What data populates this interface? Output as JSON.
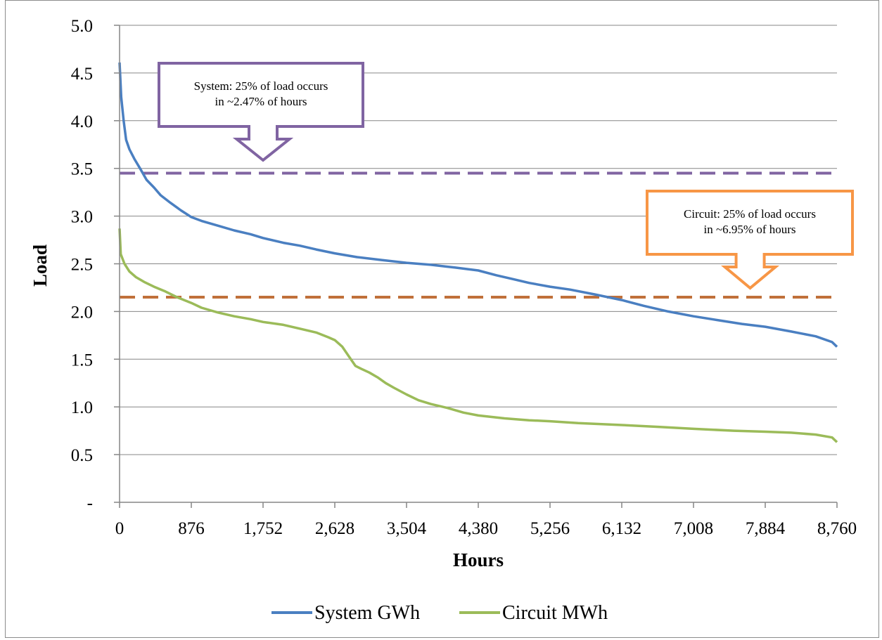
{
  "chart_data": {
    "type": "line",
    "xlabel": "Hours",
    "ylabel": "Load",
    "xlim": [
      0,
      8760
    ],
    "ylim": [
      0,
      5.0
    ],
    "grid": "horizontal",
    "legend_placement": "bottom",
    "x_ticks": [
      "0",
      "876",
      "1,752",
      "2,628",
      "3,504",
      "4,380",
      "5,256",
      "6,132",
      "7,008",
      "7,884",
      "8,760"
    ],
    "x_tick_values": [
      0,
      876,
      1752,
      2628,
      3504,
      4380,
      5256,
      6132,
      7008,
      7884,
      8760
    ],
    "y_ticks": [
      "-",
      "0.5",
      "1.0",
      "1.5",
      "2.0",
      "2.5",
      "3.0",
      "3.5",
      "4.0",
      "4.5",
      "5.0"
    ],
    "y_tick_values": [
      0,
      0.5,
      1.0,
      1.5,
      2.0,
      2.5,
      3.0,
      3.5,
      4.0,
      4.5,
      5.0
    ],
    "series": [
      {
        "name": "System GWh",
        "color": "#4a7fc1",
        "points": [
          [
            0,
            4.61
          ],
          [
            20,
            4.25
          ],
          [
            50,
            4.0
          ],
          [
            80,
            3.8
          ],
          [
            120,
            3.7
          ],
          [
            180,
            3.6
          ],
          [
            250,
            3.5
          ],
          [
            330,
            3.38
          ],
          [
            420,
            3.3
          ],
          [
            500,
            3.22
          ],
          [
            620,
            3.14
          ],
          [
            750,
            3.06
          ],
          [
            876,
            2.99
          ],
          [
            1000,
            2.95
          ],
          [
            1200,
            2.9
          ],
          [
            1400,
            2.85
          ],
          [
            1600,
            2.81
          ],
          [
            1752,
            2.77
          ],
          [
            2000,
            2.72
          ],
          [
            2200,
            2.69
          ],
          [
            2400,
            2.65
          ],
          [
            2628,
            2.61
          ],
          [
            2900,
            2.57
          ],
          [
            3200,
            2.54
          ],
          [
            3504,
            2.51
          ],
          [
            3800,
            2.49
          ],
          [
            4100,
            2.46
          ],
          [
            4380,
            2.43
          ],
          [
            4600,
            2.38
          ],
          [
            4800,
            2.34
          ],
          [
            5000,
            2.3
          ],
          [
            5256,
            2.26
          ],
          [
            5500,
            2.23
          ],
          [
            5800,
            2.18
          ],
          [
            6132,
            2.12
          ],
          [
            6400,
            2.06
          ],
          [
            6700,
            2.0
          ],
          [
            7008,
            1.95
          ],
          [
            7300,
            1.91
          ],
          [
            7600,
            1.87
          ],
          [
            7884,
            1.84
          ],
          [
            8200,
            1.79
          ],
          [
            8500,
            1.74
          ],
          [
            8700,
            1.68
          ],
          [
            8760,
            1.63
          ]
        ]
      },
      {
        "name": "Circuit MWh",
        "color": "#9bbb59",
        "points": [
          [
            0,
            2.87
          ],
          [
            15,
            2.6
          ],
          [
            60,
            2.5
          ],
          [
            120,
            2.42
          ],
          [
            200,
            2.36
          ],
          [
            300,
            2.31
          ],
          [
            420,
            2.26
          ],
          [
            560,
            2.21
          ],
          [
            700,
            2.15
          ],
          [
            876,
            2.09
          ],
          [
            1000,
            2.04
          ],
          [
            1200,
            1.99
          ],
          [
            1400,
            1.95
          ],
          [
            1600,
            1.92
          ],
          [
            1752,
            1.89
          ],
          [
            2000,
            1.86
          ],
          [
            2200,
            1.82
          ],
          [
            2400,
            1.78
          ],
          [
            2550,
            1.73
          ],
          [
            2628,
            1.7
          ],
          [
            2720,
            1.63
          ],
          [
            2800,
            1.53
          ],
          [
            2880,
            1.43
          ],
          [
            2950,
            1.4
          ],
          [
            3050,
            1.36
          ],
          [
            3150,
            1.31
          ],
          [
            3250,
            1.25
          ],
          [
            3350,
            1.2
          ],
          [
            3504,
            1.13
          ],
          [
            3650,
            1.07
          ],
          [
            3800,
            1.03
          ],
          [
            4000,
            0.99
          ],
          [
            4200,
            0.94
          ],
          [
            4380,
            0.91
          ],
          [
            4700,
            0.88
          ],
          [
            5000,
            0.86
          ],
          [
            5256,
            0.85
          ],
          [
            5600,
            0.83
          ],
          [
            6132,
            0.81
          ],
          [
            6600,
            0.79
          ],
          [
            7008,
            0.77
          ],
          [
            7500,
            0.75
          ],
          [
            7884,
            0.74
          ],
          [
            8200,
            0.73
          ],
          [
            8500,
            0.71
          ],
          [
            8700,
            0.68
          ],
          [
            8760,
            0.63
          ]
        ]
      }
    ],
    "reference_lines": [
      {
        "y": 3.45,
        "color": "#8064a2",
        "style": "dashed"
      },
      {
        "y": 2.15,
        "color": "#c0703a",
        "style": "dashed"
      }
    ],
    "annotations": [
      {
        "lines": [
          "System: 25% of load occurs",
          "in ~2.47% of hours"
        ],
        "border_color": "#8064a2",
        "pointer_x": 1752,
        "pointer_y": 3.6
      },
      {
        "lines": [
          "Circuit: 25% of load occurs",
          "in ~6.95% of hours"
        ],
        "border_color": "#f79646",
        "pointer_x": 7700,
        "pointer_y": 2.25
      }
    ]
  }
}
